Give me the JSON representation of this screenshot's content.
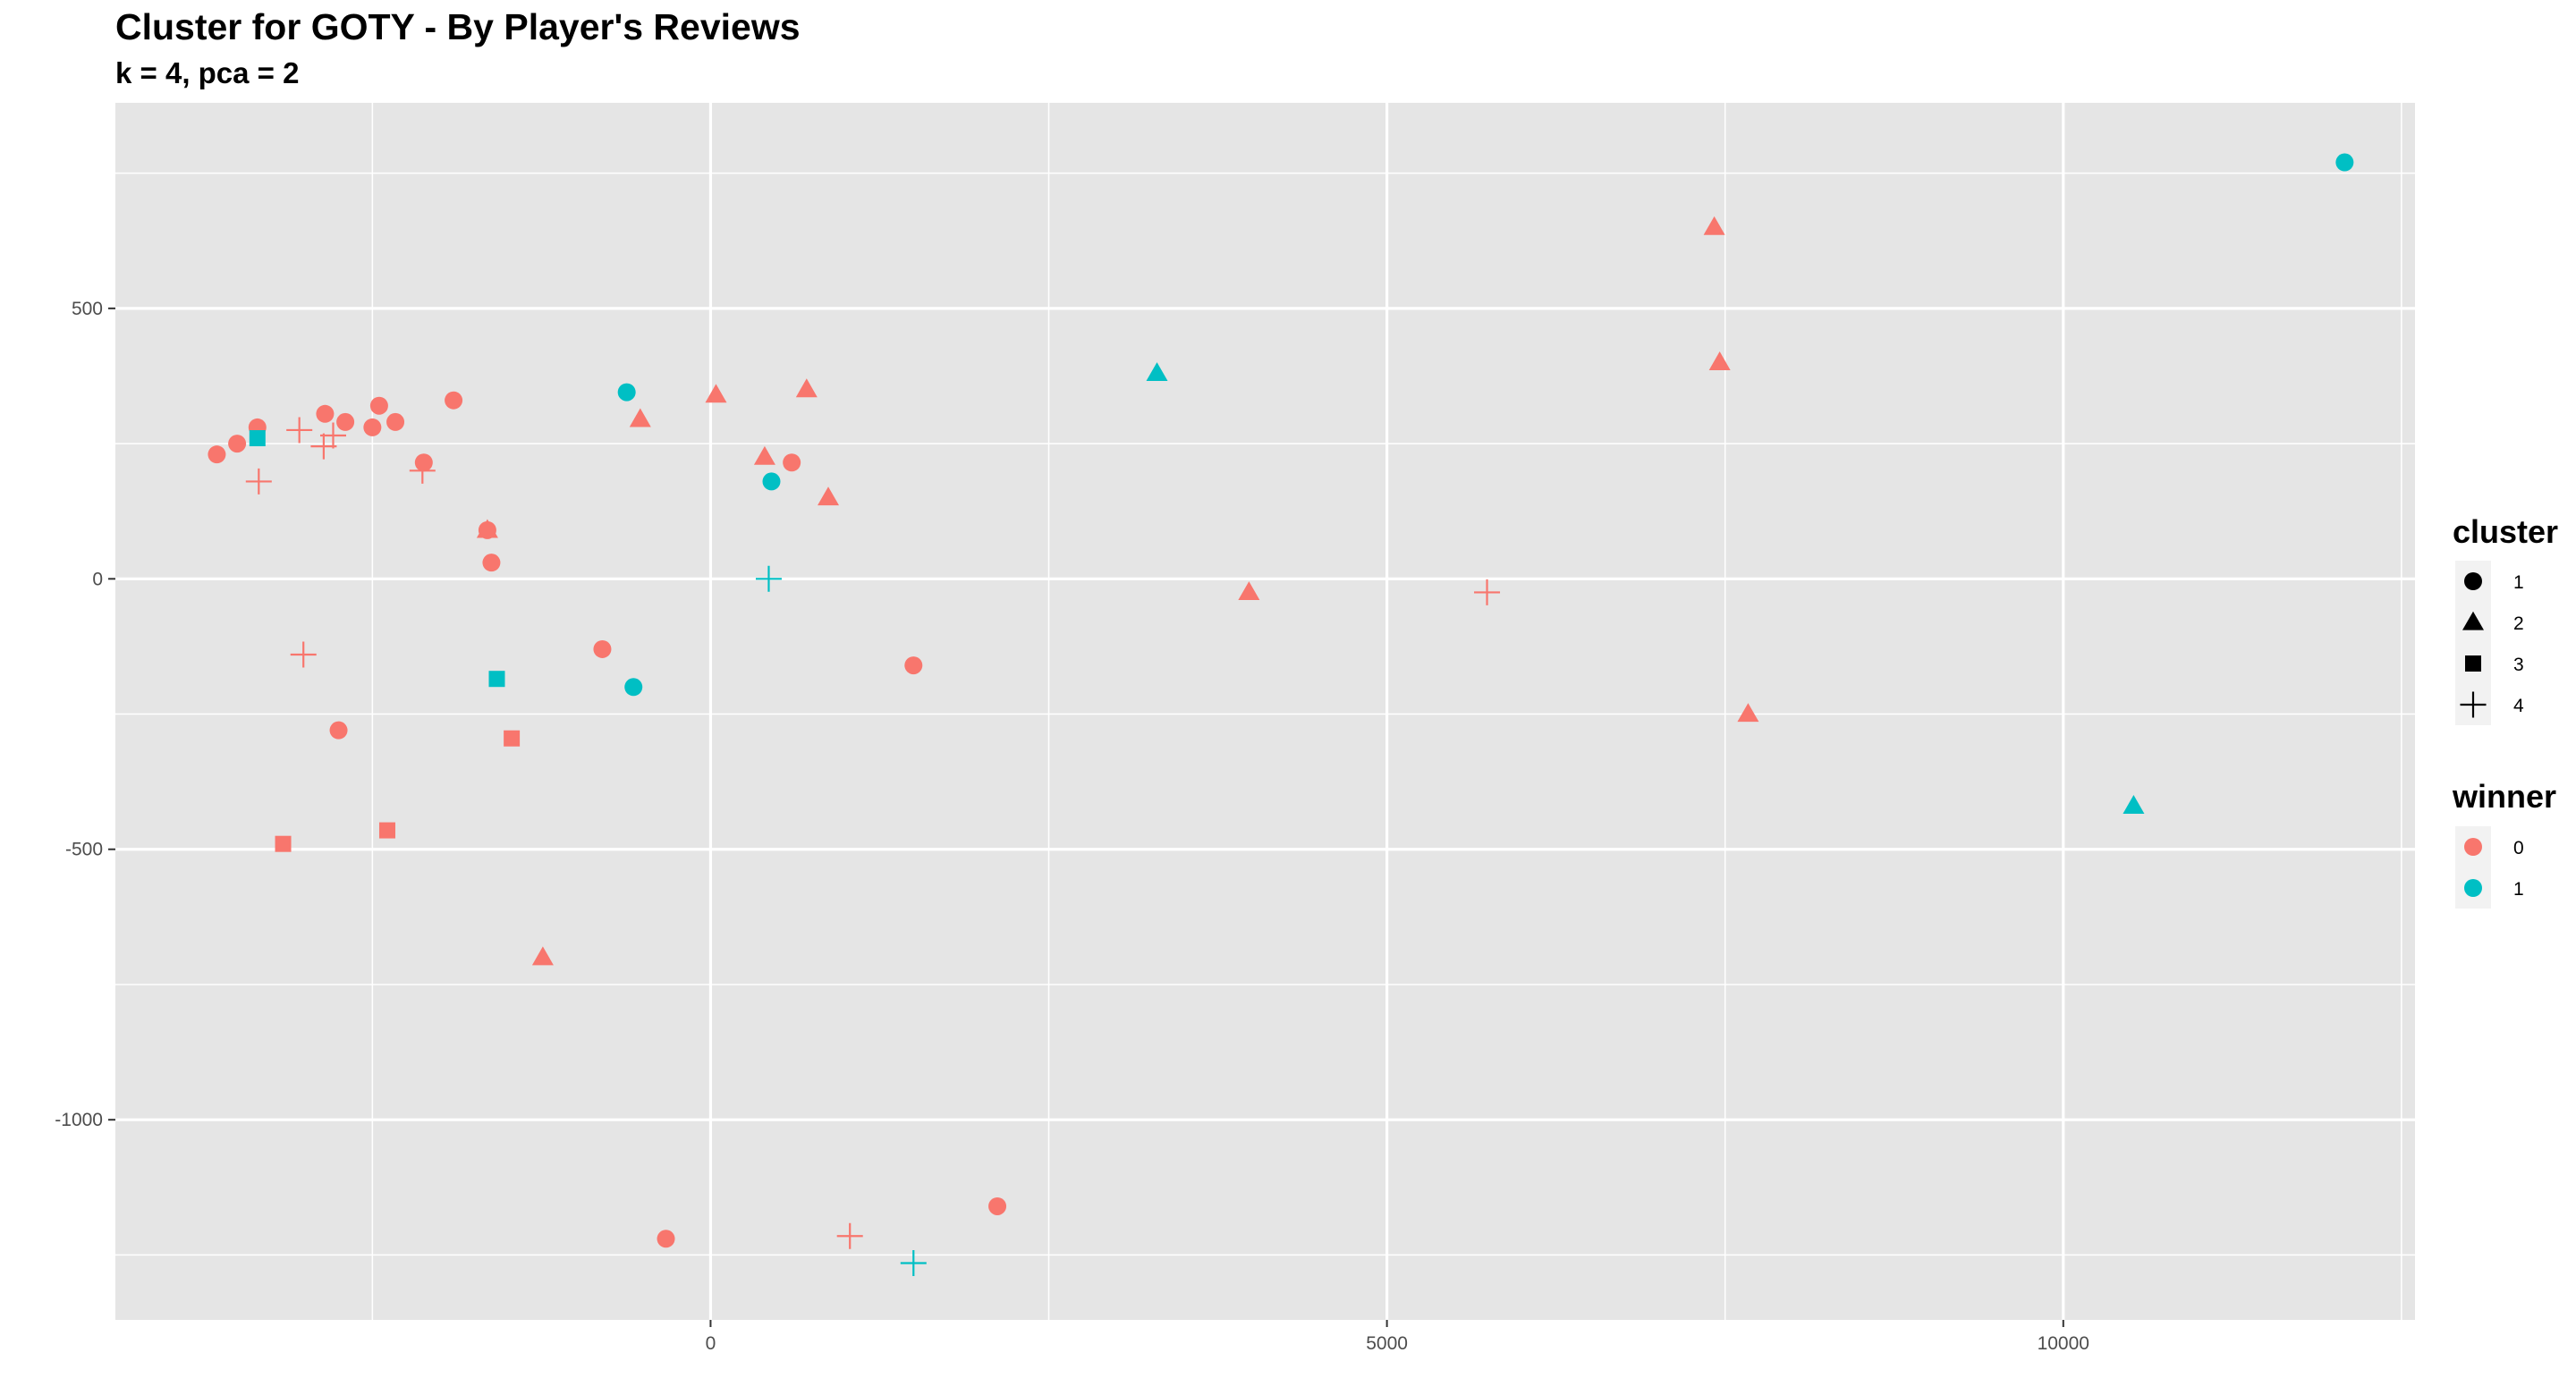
{
  "chart_data": {
    "type": "scatter",
    "title": "Cluster for GOTY - By Player's Reviews",
    "subtitle": "k = 4, pca = 2",
    "xlabel": "",
    "ylabel": "",
    "xlim": [
      -4400,
      12600
    ],
    "ylim": [
      -1370,
      880
    ],
    "x_major_ticks": [
      0,
      5000,
      10000
    ],
    "x_minor_ticks": [
      -2500,
      2500,
      7500,
      12500
    ],
    "y_major_ticks": [
      500,
      0,
      -500,
      -1000
    ],
    "y_minor_ticks": [
      750,
      250,
      -250,
      -750,
      -1250
    ],
    "x_tick_labels": [
      "0",
      "5000",
      "10000"
    ],
    "y_tick_labels": [
      "500",
      "0",
      "-500",
      "-1000"
    ],
    "grid": true,
    "legend_placement": "right",
    "colors": {
      "0": "#F8766D",
      "1": "#00BFC4",
      "panel": "#E5E5E5",
      "grid": "#FFFFFF",
      "legend_key_bg": "#F2F2F2"
    },
    "legends": [
      {
        "title": "cluster",
        "entries": [
          {
            "label": "1",
            "shape": "circle"
          },
          {
            "label": "2",
            "shape": "triangle"
          },
          {
            "label": "3",
            "shape": "square"
          },
          {
            "label": "4",
            "shape": "plus"
          }
        ]
      },
      {
        "title": "winner",
        "entries": [
          {
            "label": "0",
            "winner": 0
          },
          {
            "label": "1",
            "winner": 1
          }
        ]
      }
    ],
    "points": [
      {
        "x": -3650,
        "y": 230,
        "cluster": 1,
        "winner": 0
      },
      {
        "x": -3500,
        "y": 250,
        "cluster": 1,
        "winner": 0
      },
      {
        "x": -3350,
        "y": 280,
        "cluster": 1,
        "winner": 0
      },
      {
        "x": -2850,
        "y": 305,
        "cluster": 1,
        "winner": 0
      },
      {
        "x": -2700,
        "y": 290,
        "cluster": 1,
        "winner": 0
      },
      {
        "x": -2500,
        "y": 280,
        "cluster": 1,
        "winner": 0
      },
      {
        "x": -2450,
        "y": 320,
        "cluster": 1,
        "winner": 0
      },
      {
        "x": -2330,
        "y": 290,
        "cluster": 1,
        "winner": 0
      },
      {
        "x": -2120,
        "y": 215,
        "cluster": 1,
        "winner": 0
      },
      {
        "x": -1900,
        "y": 330,
        "cluster": 1,
        "winner": 0
      },
      {
        "x": -1650,
        "y": 90,
        "cluster": 1,
        "winner": 0
      },
      {
        "x": -1620,
        "y": 30,
        "cluster": 1,
        "winner": 0
      },
      {
        "x": -2750,
        "y": -280,
        "cluster": 1,
        "winner": 0
      },
      {
        "x": -800,
        "y": -130,
        "cluster": 1,
        "winner": 0
      },
      {
        "x": 600,
        "y": 215,
        "cluster": 1,
        "winner": 0
      },
      {
        "x": 1500,
        "y": -160,
        "cluster": 1,
        "winner": 0
      },
      {
        "x": -330,
        "y": -1220,
        "cluster": 1,
        "winner": 0
      },
      {
        "x": 2120,
        "y": -1160,
        "cluster": 1,
        "winner": 0
      },
      {
        "x": -620,
        "y": 345,
        "cluster": 1,
        "winner": 1
      },
      {
        "x": 450,
        "y": 180,
        "cluster": 1,
        "winner": 1
      },
      {
        "x": -570,
        "y": -200,
        "cluster": 1,
        "winner": 1
      },
      {
        "x": 12080,
        "y": 770,
        "cluster": 1,
        "winner": 1
      },
      {
        "x": 40,
        "y": 340,
        "cluster": 2,
        "winner": 0
      },
      {
        "x": -520,
        "y": 295,
        "cluster": 2,
        "winner": 0
      },
      {
        "x": 710,
        "y": 350,
        "cluster": 2,
        "winner": 0
      },
      {
        "x": 400,
        "y": 225,
        "cluster": 2,
        "winner": 0
      },
      {
        "x": 870,
        "y": 150,
        "cluster": 2,
        "winner": 0
      },
      {
        "x": -1650,
        "y": 90,
        "cluster": 2,
        "winner": 0
      },
      {
        "x": -1240,
        "y": -700,
        "cluster": 2,
        "winner": 0
      },
      {
        "x": 3980,
        "y": -25,
        "cluster": 2,
        "winner": 0
      },
      {
        "x": 7420,
        "y": 650,
        "cluster": 2,
        "winner": 0
      },
      {
        "x": 7460,
        "y": 400,
        "cluster": 2,
        "winner": 0
      },
      {
        "x": 7670,
        "y": -250,
        "cluster": 2,
        "winner": 0
      },
      {
        "x": 3300,
        "y": 380,
        "cluster": 2,
        "winner": 1
      },
      {
        "x": 10520,
        "y": -420,
        "cluster": 2,
        "winner": 1
      },
      {
        "x": -1470,
        "y": -295,
        "cluster": 3,
        "winner": 0
      },
      {
        "x": -2390,
        "y": -465,
        "cluster": 3,
        "winner": 0
      },
      {
        "x": -3160,
        "y": -490,
        "cluster": 3,
        "winner": 0
      },
      {
        "x": -3350,
        "y": 260,
        "cluster": 3,
        "winner": 1
      },
      {
        "x": -1580,
        "y": -185,
        "cluster": 3,
        "winner": 1
      },
      {
        "x": -3040,
        "y": 275,
        "cluster": 4,
        "winner": 0
      },
      {
        "x": -2860,
        "y": 245,
        "cluster": 4,
        "winner": 0
      },
      {
        "x": -2790,
        "y": 265,
        "cluster": 4,
        "winner": 0
      },
      {
        "x": -3340,
        "y": 180,
        "cluster": 4,
        "winner": 0
      },
      {
        "x": -2130,
        "y": 200,
        "cluster": 4,
        "winner": 0
      },
      {
        "x": -3010,
        "y": -140,
        "cluster": 4,
        "winner": 0
      },
      {
        "x": 5740,
        "y": -25,
        "cluster": 4,
        "winner": 0
      },
      {
        "x": 1030,
        "y": -1215,
        "cluster": 4,
        "winner": 0
      },
      {
        "x": 430,
        "y": 0,
        "cluster": 4,
        "winner": 1
      },
      {
        "x": 1500,
        "y": -1265,
        "cluster": 4,
        "winner": 1
      }
    ]
  }
}
